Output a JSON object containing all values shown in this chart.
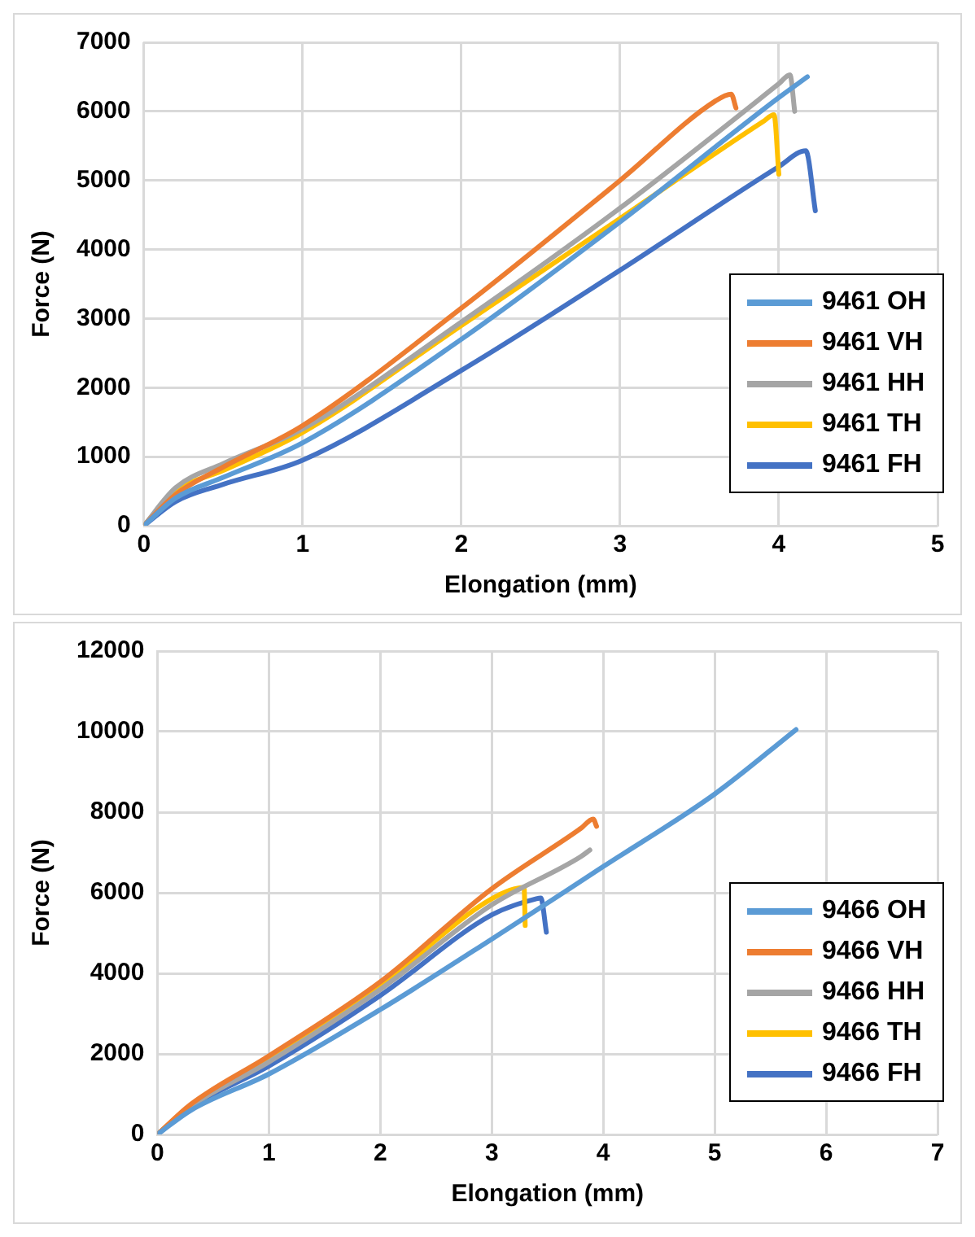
{
  "chart_data": [
    {
      "type": "line",
      "xlabel": "Elongation (mm)",
      "ylabel": "Force (N)",
      "xlim": [
        0,
        5
      ],
      "xticks": [
        0,
        1,
        2,
        3,
        4,
        5
      ],
      "ylim": [
        0,
        7000
      ],
      "yticks": [
        0,
        1000,
        2000,
        3000,
        4000,
        5000,
        6000,
        7000
      ],
      "grid": true,
      "legend": "bottom right",
      "marker": "none",
      "series": [
        {
          "name": "9461 OH",
          "color": "#5b9bd5",
          "x": [
            0,
            0.2,
            0.5,
            1,
            2,
            3,
            4,
            4.18
          ],
          "values": [
            0,
            400,
            700,
            1200,
            2700,
            4400,
            6200,
            6500
          ]
        },
        {
          "name": "9461 VH",
          "color": "#ed7d31",
          "x": [
            0,
            0.2,
            0.5,
            1,
            2,
            3,
            3.6,
            3.7,
            3.73
          ],
          "values": [
            0,
            450,
            850,
            1450,
            3150,
            5000,
            6150,
            6250,
            6050
          ]
        },
        {
          "name": "9461 HH",
          "color": "#a5a5a5",
          "x": [
            0,
            0.2,
            0.5,
            1,
            2,
            3,
            4,
            4.07,
            4.1
          ],
          "values": [
            0,
            550,
            900,
            1400,
            2950,
            4600,
            6400,
            6530,
            6000
          ]
        },
        {
          "name": "9461 TH",
          "color": "#ffc000",
          "x": [
            0,
            0.2,
            0.5,
            1,
            2,
            3,
            3.9,
            3.97,
            4
          ],
          "values": [
            0,
            500,
            800,
            1350,
            2900,
            4450,
            5850,
            5950,
            5090
          ]
        },
        {
          "name": "9461 FH",
          "color": "#4472c4",
          "x": [
            0,
            0.2,
            0.5,
            1,
            2,
            3,
            4,
            4.17,
            4.23
          ],
          "values": [
            0,
            350,
            600,
            950,
            2250,
            3700,
            5200,
            5430,
            4560
          ]
        }
      ]
    },
    {
      "type": "line",
      "xlabel": "Elongation (mm)",
      "ylabel": "Force (N)",
      "xlim": [
        0,
        7
      ],
      "xticks": [
        0,
        1,
        2,
        3,
        4,
        5,
        6,
        7
      ],
      "ylim": [
        0,
        12000
      ],
      "yticks": [
        0,
        2000,
        4000,
        6000,
        8000,
        10000,
        12000
      ],
      "grid": true,
      "legend": "bottom right",
      "marker": "none",
      "series": [
        {
          "name": "9466 OH",
          "color": "#5b9bd5",
          "x": [
            0,
            0.3,
            1,
            2,
            3,
            4,
            5,
            5.73
          ],
          "values": [
            0,
            600,
            1500,
            3100,
            4850,
            6650,
            8450,
            10050
          ]
        },
        {
          "name": "9466 VH",
          "color": "#ed7d31",
          "x": [
            0,
            0.3,
            1,
            2,
            3,
            3.8,
            3.91,
            3.94
          ],
          "values": [
            0,
            750,
            1950,
            3790,
            6100,
            7600,
            7830,
            7650
          ]
        },
        {
          "name": "9466 HH",
          "color": "#a5a5a5",
          "x": [
            0,
            0.3,
            1,
            2,
            3,
            3.8,
            3.88
          ],
          "values": [
            0,
            700,
            1800,
            3600,
            5700,
            6900,
            7060
          ]
        },
        {
          "name": "9466 TH",
          "color": "#ffc000",
          "x": [
            0,
            0.3,
            1,
            2,
            3,
            3.29,
            3.3
          ],
          "values": [
            0,
            720,
            1900,
            3700,
            5850,
            6130,
            5190
          ]
        },
        {
          "name": "9466 FH",
          "color": "#4472c4",
          "x": [
            0,
            0.3,
            1,
            2,
            3,
            3.4,
            3.44,
            3.49
          ],
          "values": [
            0,
            680,
            1700,
            3450,
            5450,
            5850,
            5870,
            5020
          ]
        }
      ]
    }
  ]
}
